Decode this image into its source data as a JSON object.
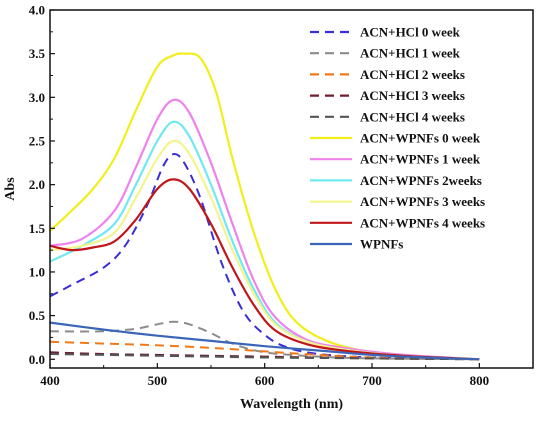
{
  "chart_data": {
    "type": "line",
    "xlabel": "Wavelength (nm)",
    "ylabel": "Abs",
    "xlim": [
      400,
      850
    ],
    "ylim": [
      -0.1,
      4.0
    ],
    "xticks": [
      400,
      500,
      600,
      700,
      800
    ],
    "xtick_labels": [
      "400",
      "500",
      "600",
      "700",
      "800"
    ],
    "yticks": [
      0.0,
      0.5,
      1.0,
      1.5,
      2.0,
      2.5,
      3.0,
      3.5,
      4.0
    ],
    "ytick_labels": [
      "0.0",
      "0.5",
      "1.0",
      "1.5",
      "2.0",
      "2.5",
      "3.0",
      "3.5",
      "4.0"
    ],
    "legend_position": "top-right",
    "grid": false,
    "series": [
      {
        "name": "ACN+HCl 0 week",
        "color": "#3a2fd6",
        "dash": "dashed",
        "x": [
          400,
          420,
          450,
          470,
          490,
          505,
          515,
          525,
          540,
          560,
          580,
          600,
          620,
          650,
          700,
          750,
          800
        ],
        "y": [
          0.72,
          0.85,
          1.05,
          1.3,
          1.75,
          2.2,
          2.35,
          2.25,
          1.85,
          1.1,
          0.55,
          0.28,
          0.14,
          0.06,
          0.02,
          0.01,
          0.0
        ]
      },
      {
        "name": "ACN+HCl 1 week",
        "color": "#8c8c8c",
        "dash": "dashed",
        "x": [
          400,
          450,
          480,
          500,
          515,
          530,
          550,
          570,
          600,
          650,
          700,
          800
        ],
        "y": [
          0.32,
          0.32,
          0.35,
          0.4,
          0.43,
          0.4,
          0.3,
          0.18,
          0.08,
          0.03,
          0.01,
          0.0
        ]
      },
      {
        "name": "ACN+HCl 2 weeks",
        "color": "#f07a1a",
        "dash": "dashed",
        "x": [
          400,
          450,
          500,
          550,
          600,
          650,
          700,
          800
        ],
        "y": [
          0.2,
          0.18,
          0.16,
          0.13,
          0.09,
          0.05,
          0.02,
          0.0
        ]
      },
      {
        "name": "ACN+HCl 3 weeks",
        "color": "#6e1f2f",
        "dash": "dashed",
        "x": [
          400,
          450,
          500,
          550,
          600,
          700,
          800
        ],
        "y": [
          0.08,
          0.06,
          0.05,
          0.04,
          0.03,
          0.01,
          0.0
        ]
      },
      {
        "name": "ACN+HCl 4 weeks",
        "color": "#555555",
        "dash": "dashed",
        "x": [
          400,
          450,
          500,
          550,
          600,
          700,
          800
        ],
        "y": [
          0.06,
          0.05,
          0.04,
          0.03,
          0.02,
          0.01,
          0.0
        ]
      },
      {
        "name": "ACN+WPNFs 0 week",
        "color": "#f2ee1c",
        "dash": "solid",
        "x": [
          400,
          420,
          440,
          460,
          480,
          500,
          515,
          525,
          540,
          555,
          570,
          590,
          610,
          630,
          660,
          700,
          750,
          800
        ],
        "y": [
          1.47,
          1.7,
          1.95,
          2.3,
          2.85,
          3.35,
          3.48,
          3.5,
          3.45,
          3.05,
          2.3,
          1.45,
          0.8,
          0.42,
          0.2,
          0.08,
          0.03,
          0.0
        ]
      },
      {
        "name": "ACN+WPNFs 1 week",
        "color": "#ee82ee",
        "dash": "solid",
        "x": [
          400,
          430,
          460,
          480,
          500,
          515,
          530,
          550,
          570,
          590,
          610,
          640,
          680,
          730,
          800
        ],
        "y": [
          1.3,
          1.38,
          1.7,
          2.2,
          2.75,
          2.97,
          2.82,
          2.25,
          1.55,
          0.9,
          0.48,
          0.22,
          0.12,
          0.05,
          0.0
        ]
      },
      {
        "name": "ACN+WPNFs 2weeks",
        "color": "#6fe8f2",
        "dash": "solid",
        "x": [
          400,
          430,
          460,
          480,
          500,
          515,
          530,
          550,
          570,
          590,
          610,
          640,
          680,
          730,
          800
        ],
        "y": [
          1.12,
          1.3,
          1.55,
          2.0,
          2.5,
          2.72,
          2.55,
          2.0,
          1.35,
          0.8,
          0.42,
          0.2,
          0.1,
          0.04,
          0.0
        ]
      },
      {
        "name": "ACN+WPNFs 3 weeks",
        "color": "#f4f48c",
        "dash": "solid",
        "x": [
          400,
          430,
          460,
          480,
          500,
          515,
          530,
          550,
          570,
          590,
          610,
          640,
          680,
          730,
          800
        ],
        "y": [
          1.25,
          1.3,
          1.45,
          1.85,
          2.3,
          2.5,
          2.35,
          1.85,
          1.25,
          0.75,
          0.4,
          0.2,
          0.1,
          0.04,
          0.0
        ]
      },
      {
        "name": "ACN+WPNFs 4 weeks",
        "color": "#c0161a",
        "dash": "solid",
        "x": [
          400,
          420,
          440,
          460,
          480,
          500,
          515,
          530,
          550,
          570,
          590,
          610,
          640,
          680,
          730,
          800
        ],
        "y": [
          1.3,
          1.25,
          1.28,
          1.35,
          1.6,
          1.95,
          2.06,
          1.95,
          1.55,
          1.05,
          0.62,
          0.33,
          0.17,
          0.09,
          0.04,
          0.0
        ]
      },
      {
        "name": "WPNFs",
        "color": "#3b66b8",
        "dash": "solid",
        "x": [
          400,
          450,
          500,
          550,
          600,
          650,
          700,
          750,
          800
        ],
        "y": [
          0.42,
          0.34,
          0.27,
          0.21,
          0.15,
          0.1,
          0.05,
          0.02,
          0.0
        ]
      }
    ]
  }
}
